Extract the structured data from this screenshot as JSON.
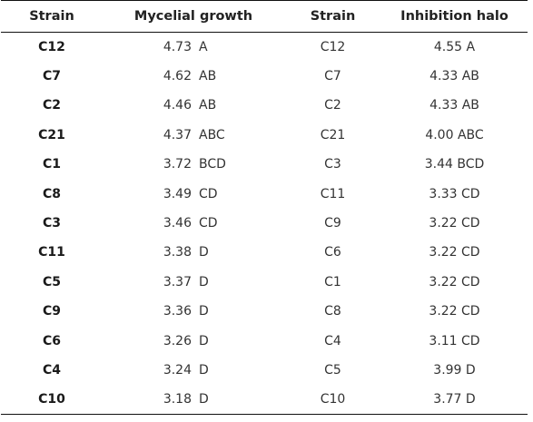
{
  "headers": [
    "Strain",
    "Mycelial growth",
    "Strain",
    "Inhibition halo"
  ],
  "rows": [
    {
      "strain1": "C12",
      "growth": "4.73",
      "growth_group": "A",
      "strain2": "C12",
      "halo": "4.55 A"
    },
    {
      "strain1": "C7",
      "growth": "4.62",
      "growth_group": "AB",
      "strain2": "C7",
      "halo": "4.33 AB"
    },
    {
      "strain1": "C2",
      "growth": "4.46",
      "growth_group": "AB",
      "strain2": "C2",
      "halo": "4.33 AB"
    },
    {
      "strain1": "C21",
      "growth": "4.37",
      "growth_group": "ABC",
      "strain2": "C21",
      "halo": "4.00 ABC"
    },
    {
      "strain1": "C1",
      "growth": "3.72",
      "growth_group": "BCD",
      "strain2": "C3",
      "halo": "3.44 BCD"
    },
    {
      "strain1": "C8",
      "growth": "3.49",
      "growth_group": "CD",
      "strain2": "C11",
      "halo": "3.33 CD"
    },
    {
      "strain1": "C3",
      "growth": "3.46",
      "growth_group": "CD",
      "strain2": "C9",
      "halo": "3.22 CD"
    },
    {
      "strain1": "C11",
      "growth": "3.38",
      "growth_group": "D",
      "strain2": "C6",
      "halo": "3.22 CD"
    },
    {
      "strain1": "C5",
      "growth": "3.37",
      "growth_group": "D",
      "strain2": "C1",
      "halo": "3.22 CD"
    },
    {
      "strain1": "C9",
      "growth": "3.36",
      "growth_group": "D",
      "strain2": "C8",
      "halo": "3.22 CD"
    },
    {
      "strain1": "C6",
      "growth": "3.26",
      "growth_group": "D",
      "strain2": "C4",
      "halo": "3.11 CD"
    },
    {
      "strain1": "C4",
      "growth": "3.24",
      "growth_group": "D",
      "strain2": "C5",
      "halo": "3.99 D"
    },
    {
      "strain1": "C10",
      "growth": "3.18",
      "growth_group": "D",
      "strain2": "C10",
      "halo": "3.77 D"
    }
  ]
}
